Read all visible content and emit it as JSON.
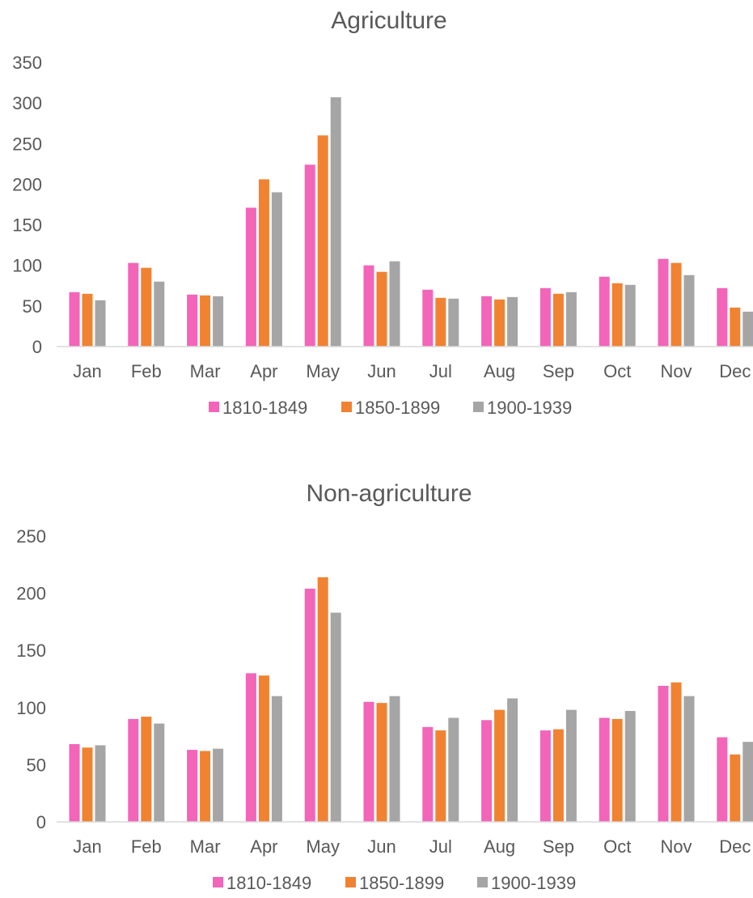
{
  "chart_data": [
    {
      "type": "bar",
      "title": "Agriculture",
      "xlabel": "",
      "ylabel": "",
      "ylim": [
        0,
        350
      ],
      "yticks": [
        "0",
        "50",
        "100",
        "150",
        "200",
        "250",
        "300",
        "350"
      ],
      "grid": false,
      "legend_position": "bottom",
      "categories": [
        "Jan",
        "Feb",
        "Mar",
        "Apr",
        "May",
        "Jun",
        "Jul",
        "Aug",
        "Sep",
        "Oct",
        "Nov",
        "Dec"
      ],
      "series": [
        {
          "name": "1810-1849",
          "color": "#f265b9",
          "values": [
            67,
            103,
            64,
            171,
            224,
            100,
            70,
            62,
            72,
            86,
            108,
            72
          ]
        },
        {
          "name": "1850-1899",
          "color": "#f08232",
          "values": [
            65,
            97,
            63,
            206,
            260,
            92,
            60,
            58,
            65,
            78,
            103,
            48
          ]
        },
        {
          "name": "1900-1939",
          "color": "#a5a5a5",
          "values": [
            57,
            80,
            62,
            190,
            307,
            105,
            59,
            61,
            67,
            76,
            88,
            43
          ]
        }
      ]
    },
    {
      "type": "bar",
      "title": "Non-agriculture",
      "xlabel": "",
      "ylabel": "",
      "ylim": [
        0,
        250
      ],
      "yticks": [
        "0",
        "50",
        "100",
        "150",
        "200",
        "250"
      ],
      "grid": false,
      "legend_position": "bottom",
      "categories": [
        "Jan",
        "Feb",
        "Mar",
        "Apr",
        "May",
        "Jun",
        "Jul",
        "Aug",
        "Sep",
        "Oct",
        "Nov",
        "Dec"
      ],
      "series": [
        {
          "name": "1810-1849",
          "color": "#f265b9",
          "values": [
            68,
            90,
            63,
            130,
            204,
            105,
            83,
            89,
            80,
            91,
            119,
            74
          ]
        },
        {
          "name": "1850-1899",
          "color": "#f08232",
          "values": [
            65,
            92,
            62,
            128,
            214,
            104,
            80,
            98,
            81,
            90,
            122,
            59
          ]
        },
        {
          "name": "1900-1939",
          "color": "#a5a5a5",
          "values": [
            67,
            86,
            64,
            110,
            183,
            110,
            91,
            108,
            98,
            97,
            110,
            70
          ]
        }
      ]
    }
  ]
}
